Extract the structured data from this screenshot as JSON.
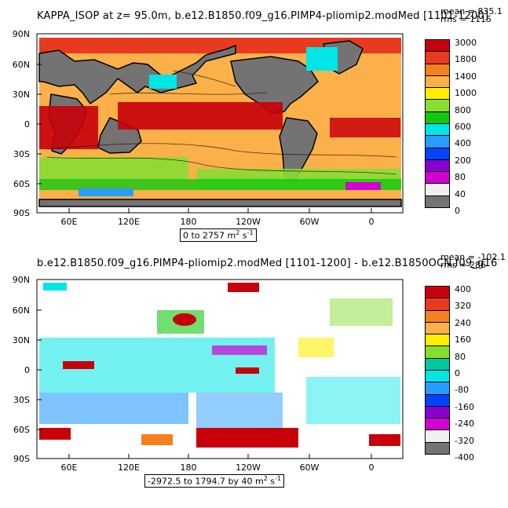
{
  "panel1": {
    "title": "KAPPA_ISOP at z=  95.0m, b.e12.B1850.f09_g16.PIMP4-pliomip2.modMed [1101-1200]",
    "stat_mean": "mean = 835.1",
    "stat_rms": "rms = 1115",
    "range_prefix": "0 to 2757 m",
    "range_suffix": "s",
    "colorbar_labels": [
      "3000",
      "1800",
      "1400",
      "1000",
      "800",
      "600",
      "400",
      "200",
      "80",
      "40",
      "0"
    ],
    "colorbar_colors": [
      "#c8000a",
      "#e83a1e",
      "#f5811e",
      "#fbb04a",
      "#ffee00",
      "#88dd33",
      "#11c811",
      "#00e6e6",
      "#2a9cff",
      "#0044ff",
      "#8800d0",
      "#d200d0",
      "#f0f0f0",
      "#737373"
    ]
  },
  "panel2": {
    "title": "b.e12.B1850.f09_g16.PIMP4-pliomip2.modMed [1101-1200] - b.e12.B1850OCN.f09_g16",
    "stat_mean": "mean = -102.1",
    "stat_rms": "rms = 286",
    "range_prefix": "-2972.5 to 1794.7 by 40 m",
    "range_suffix": "s",
    "colorbar_labels": [
      "400",
      "320",
      "240",
      "160",
      "80",
      "0",
      "-80",
      "-160",
      "-240",
      "-320",
      "-400"
    ],
    "colorbar_colors": [
      "#c8000a",
      "#e83a1e",
      "#f5811e",
      "#fbb04a",
      "#ffee00",
      "#88dd33",
      "#00c8a0",
      "#00e6e6",
      "#2a9cff",
      "#0044ff",
      "#8800d0",
      "#d200d0",
      "#f0f0f0",
      "#737373"
    ]
  },
  "axes": {
    "y_labels": [
      "90N",
      "60N",
      "30N",
      "0",
      "30S",
      "60S",
      "90S"
    ],
    "x_labels": [
      "60E",
      "120E",
      "180",
      "120W",
      "60W",
      "0"
    ]
  },
  "unit_exponent": "2",
  "unit_time_exponent": "-1"
}
